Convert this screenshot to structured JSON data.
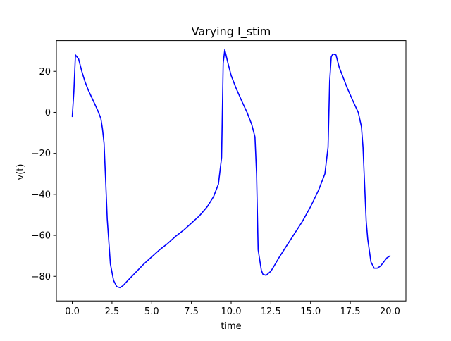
{
  "chart_data": {
    "type": "line",
    "title": "Varying I_stim",
    "xlabel": "time",
    "ylabel": "v(t)",
    "xlim": [
      -1.0,
      21.0
    ],
    "ylim": [
      -92,
      35
    ],
    "xticks": [
      0.0,
      2.5,
      5.0,
      7.5,
      10.0,
      12.5,
      15.0,
      17.5,
      20.0
    ],
    "xtick_labels": [
      "0.0",
      "2.5",
      "5.0",
      "7.5",
      "10.0",
      "12.5",
      "15.0",
      "17.5",
      "20.0"
    ],
    "yticks": [
      -80,
      -60,
      -40,
      -20,
      0,
      20
    ],
    "ytick_labels": [
      "−80",
      "−60",
      "−40",
      "−20",
      "0",
      "20"
    ],
    "grid": false,
    "series": [
      {
        "color": "#0000ff",
        "x": [
          0.0,
          0.1,
          0.2,
          0.4,
          0.6,
          0.8,
          1.0,
          1.3,
          1.6,
          1.8,
          1.9,
          2.0,
          2.1,
          2.2,
          2.4,
          2.6,
          2.8,
          3.0,
          3.2,
          3.5,
          4.0,
          4.5,
          5.0,
          5.5,
          6.0,
          6.5,
          7.0,
          7.5,
          8.0,
          8.5,
          8.9,
          9.2,
          9.4,
          9.5,
          9.6,
          9.8,
          10.0,
          10.3,
          10.7,
          11.0,
          11.3,
          11.5,
          11.6,
          11.7,
          11.9,
          12.0,
          12.2,
          12.5,
          12.7,
          13.0,
          13.5,
          14.0,
          14.5,
          15.0,
          15.5,
          15.9,
          16.1,
          16.2,
          16.3,
          16.4,
          16.6,
          16.8,
          17.0,
          17.3,
          17.7,
          18.0,
          18.2,
          18.3,
          18.4,
          18.5,
          18.6,
          18.8,
          19.0,
          19.2,
          19.4,
          19.6,
          19.8,
          20.0
        ],
        "y": [
          -2,
          10,
          28,
          26,
          20,
          15,
          11,
          6,
          1,
          -3,
          -8,
          -15,
          -33,
          -52,
          -74,
          -82,
          -85,
          -85.5,
          -84.5,
          -82,
          -78,
          -74,
          -70.5,
          -67,
          -64,
          -60.5,
          -57.5,
          -54,
          -50.5,
          -46,
          -41,
          -35,
          -22,
          24,
          30.5,
          24,
          18,
          12,
          5,
          0,
          -6,
          -12,
          -30,
          -67,
          -77,
          -79,
          -79.5,
          -77.5,
          -75,
          -71,
          -65,
          -59,
          -53,
          -46,
          -38,
          -30,
          -17,
          15,
          27,
          28.5,
          28,
          22,
          18,
          12,
          5,
          0,
          -7,
          -17,
          -35,
          -53,
          -62,
          -73,
          -76,
          -76,
          -75,
          -73,
          -71,
          -70
        ]
      }
    ]
  }
}
